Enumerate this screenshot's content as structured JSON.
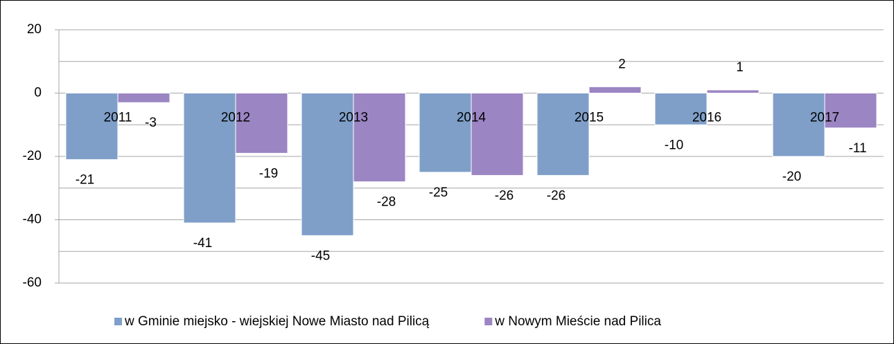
{
  "chart_data": {
    "type": "bar",
    "categories": [
      "2011",
      "2012",
      "2013",
      "2014",
      "2015",
      "2016",
      "2017"
    ],
    "series": [
      {
        "name": "w Gminie miejsko - wiejskiej Nowe Miasto nad Pilicą",
        "color": "#7f9fc9",
        "values": [
          -21,
          -41,
          -45,
          -25,
          -26,
          -10,
          -20
        ]
      },
      {
        "name": "w Nowym Mieście nad Pilica",
        "color": "#9b85c3",
        "values": [
          -3,
          -19,
          -28,
          -26,
          2,
          1,
          -11
        ]
      }
    ],
    "ylim": [
      -60,
      20
    ],
    "yticks": [
      -60,
      -40,
      -20,
      0,
      20
    ],
    "yminorticks": [
      -50,
      -30,
      -10,
      10
    ],
    "grid": true,
    "legend": "bottom"
  }
}
